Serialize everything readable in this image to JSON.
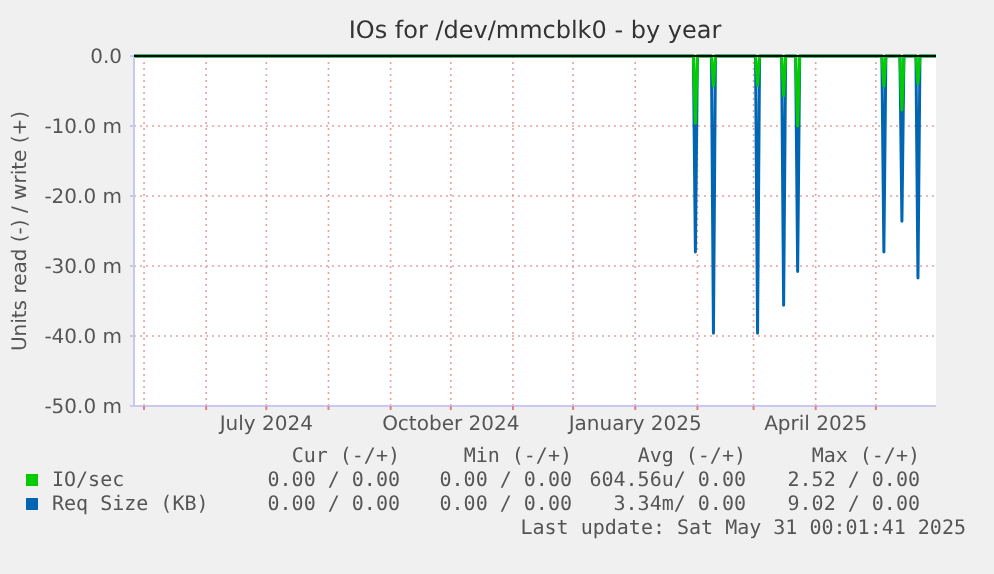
{
  "chart_data": {
    "type": "line",
    "title": "IOs for /dev/mmcblk0 - by year",
    "ylabel": "Units read (-) / write (+)",
    "xlim": [
      "2024-04-26",
      "2025-05-31"
    ],
    "xticks": [
      {
        "value": "2024-05-01",
        "label": null
      },
      {
        "value": "2024-06-01",
        "label": null
      },
      {
        "value": "2024-07-01",
        "label": "July 2024"
      },
      {
        "value": "2024-08-01",
        "label": null
      },
      {
        "value": "2024-09-01",
        "label": null
      },
      {
        "value": "2024-10-01",
        "label": "October 2024"
      },
      {
        "value": "2024-11-01",
        "label": null
      },
      {
        "value": "2024-12-01",
        "label": null
      },
      {
        "value": "2025-01-01",
        "label": "January 2025"
      },
      {
        "value": "2025-02-01",
        "label": null
      },
      {
        "value": "2025-03-01",
        "label": null
      },
      {
        "value": "2025-04-01",
        "label": "April 2025"
      },
      {
        "value": "2025-05-01",
        "label": null
      }
    ],
    "ylim": [
      -50,
      0
    ],
    "yticks": [
      {
        "value": -50,
        "label": "-50.0 m"
      },
      {
        "value": -40,
        "label": "-40.0 m"
      },
      {
        "value": -30,
        "label": "-30.0 m"
      },
      {
        "value": -20,
        "label": "-20.0 m"
      },
      {
        "value": -10,
        "label": "-10.0 m"
      },
      {
        "value": 0,
        "label": "0.0"
      }
    ],
    "grid": true,
    "legend": "bottom",
    "series": [
      {
        "name": "Req Size (KB)",
        "color": "#0066b3",
        "x": [
          "2024-04-26",
          "2025-01-30",
          "2025-01-31",
          "2025-02-01",
          "2025-02-08",
          "2025-02-09",
          "2025-02-10",
          "2025-03-02",
          "2025-03-03",
          "2025-03-04",
          "2025-03-15",
          "2025-03-16",
          "2025-03-17",
          "2025-03-22",
          "2025-03-23",
          "2025-03-24",
          "2025-05-04",
          "2025-05-05",
          "2025-05-06",
          "2025-05-13",
          "2025-05-14",
          "2025-05-15",
          "2025-05-21",
          "2025-05-22",
          "2025-05-23",
          "2025-05-31"
        ],
        "values": [
          0,
          0,
          -28,
          0,
          0,
          -39.6,
          0,
          0,
          -39.6,
          0,
          0,
          -35.6,
          0,
          0,
          -30.8,
          0,
          0,
          -28,
          0,
          0,
          -23.6,
          0,
          0,
          -31.7,
          0,
          0
        ]
      },
      {
        "name": "IO/sec",
        "color": "#00cc00",
        "x": [
          "2024-04-26",
          "2025-01-30",
          "2025-01-31",
          "2025-02-01",
          "2025-02-08",
          "2025-02-09",
          "2025-02-10",
          "2025-03-02",
          "2025-03-03",
          "2025-03-04",
          "2025-03-15",
          "2025-03-16",
          "2025-03-17",
          "2025-03-22",
          "2025-03-23",
          "2025-03-24",
          "2025-05-04",
          "2025-05-05",
          "2025-05-06",
          "2025-05-13",
          "2025-05-14",
          "2025-05-15",
          "2025-05-21",
          "2025-05-22",
          "2025-05-23",
          "2025-05-31"
        ],
        "values": [
          0,
          0,
          -9.6,
          0,
          0,
          -4.3,
          0,
          0,
          -4.2,
          0,
          0,
          -5.7,
          0,
          0,
          -10,
          0,
          0,
          -4.3,
          0,
          0,
          -7.7,
          0,
          0,
          -3.9,
          0,
          0
        ]
      }
    ],
    "annotations": [
      "Cur (-/+)",
      "Min (-/+)",
      "Avg (-/+)",
      "Max (-/+)",
      "0.00 / 0.00",
      "0.00 / 0.00",
      "604.56u/ 0.00",
      "2.52 / 0.00",
      "0.00 / 0.00",
      "0.00 / 0.00",
      "3.34m/ 0.00",
      "9.02 / 0.00",
      "Last update: Sat May 31 00:01:41 2025"
    ]
  }
}
